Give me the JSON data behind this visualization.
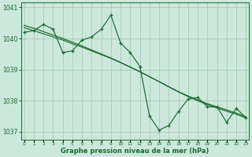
{
  "x": [
    0,
    1,
    2,
    3,
    4,
    5,
    6,
    7,
    8,
    9,
    10,
    11,
    12,
    13,
    14,
    15,
    16,
    17,
    18,
    19,
    20,
    21,
    22,
    23
  ],
  "y_main": [
    1040.2,
    1040.25,
    1040.45,
    1040.3,
    1039.55,
    1039.6,
    1039.95,
    1040.05,
    1040.3,
    1040.75,
    1039.85,
    1039.55,
    1039.1,
    1037.5,
    1037.05,
    1037.2,
    1037.65,
    1038.05,
    1038.1,
    1037.8,
    1037.8,
    1037.3,
    1037.75,
    1037.45
  ],
  "y_linear1": [
    1040.35,
    1040.25,
    1040.15,
    1040.05,
    1039.95,
    1039.83,
    1039.72,
    1039.6,
    1039.48,
    1039.36,
    1039.22,
    1039.08,
    1038.93,
    1038.77,
    1038.61,
    1038.45,
    1038.29,
    1038.15,
    1038.02,
    1037.9,
    1037.8,
    1037.7,
    1037.6,
    1037.48
  ],
  "y_linear2": [
    1040.42,
    1040.33,
    1040.22,
    1040.11,
    1040.0,
    1039.88,
    1039.76,
    1039.63,
    1039.5,
    1039.37,
    1039.23,
    1039.08,
    1038.93,
    1038.77,
    1038.61,
    1038.44,
    1038.28,
    1038.13,
    1038.0,
    1037.87,
    1037.76,
    1037.66,
    1037.56,
    1037.44
  ],
  "line_color": "#1a6b2e",
  "bg_color": "#cce8dc",
  "grid_color": "#aac8b8",
  "xlim": [
    -0.3,
    23.3
  ],
  "ylim": [
    1036.75,
    1041.15
  ],
  "yticks": [
    1037,
    1038,
    1039,
    1040,
    1041
  ],
  "xlabel": "Graphe pression niveau de la mer (hPa)"
}
